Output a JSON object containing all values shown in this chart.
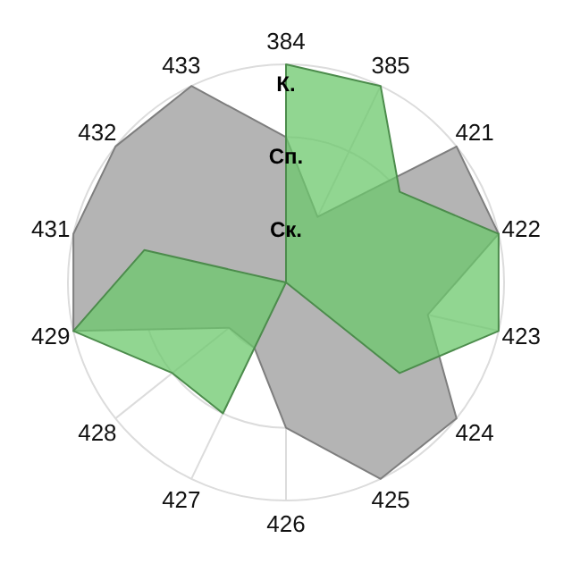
{
  "chart_data": {
    "type": "radar",
    "categories": [
      "384",
      "385",
      "421",
      "422",
      "423",
      "424",
      "425",
      "426",
      "427",
      "428",
      "429",
      "431",
      "432",
      "433"
    ],
    "series": [
      {
        "color": "#b4b4b4",
        "values": [
          2,
          1,
          3,
          3,
          2,
          3,
          3,
          2,
          1,
          1,
          3,
          3,
          3,
          3
        ]
      },
      {
        "color": "#6cc86c",
        "values": [
          3,
          3,
          2,
          3,
          3,
          2,
          0,
          0,
          2,
          2,
          3,
          2,
          0,
          0
        ]
      }
    ],
    "ylim": [
      0,
      3
    ],
    "yticks": [
      {
        "value": 1,
        "label": "Ск."
      },
      {
        "value": 2,
        "label": "Сп."
      },
      {
        "value": 3,
        "label": "К."
      }
    ],
    "grid": true
  }
}
